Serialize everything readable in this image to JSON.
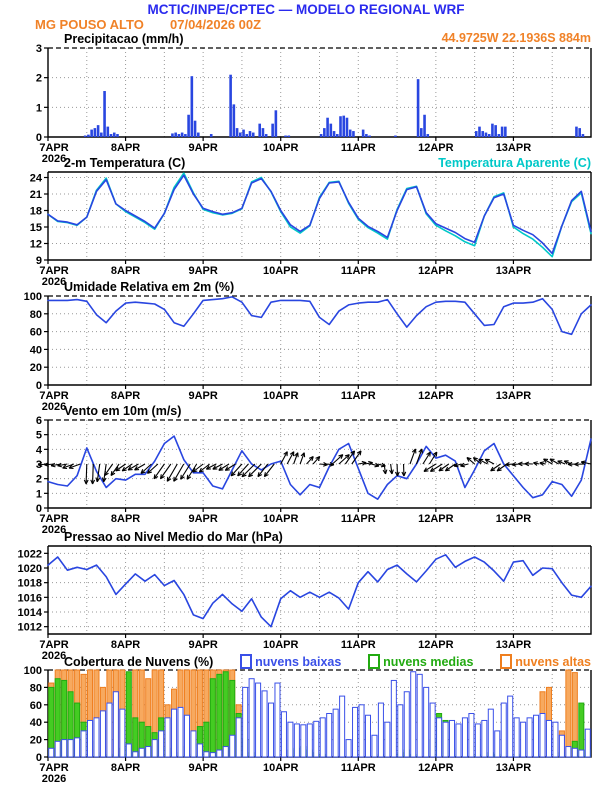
{
  "header": {
    "title": "MCTIC/INPE/CPTEC — MODELO REGIONAL WRF",
    "station": "MG POUSO ALTO",
    "run": "07/04/2026 00Z",
    "location": "44.9725W 22.1936S 884m"
  },
  "colors": {
    "header_blue": "#2a2aee",
    "orange": "#f08228",
    "line_blue": "#2946e0",
    "cyan": "#00c8c8",
    "cloud_low": "#3a50e8",
    "cloud_low_fill": "#ffffff",
    "cloud_mid": "#22aa11",
    "cloud_mid_fill": "#44cc22",
    "cloud_high": "#ef7f1f",
    "cloud_high_fill": "#f7a95f",
    "grid": "#9a9a9a",
    "frame": "#000000"
  },
  "x_axis": {
    "tick_hours": [
      0,
      24,
      48,
      72,
      96,
      120,
      144
    ],
    "tick_labels": [
      "7APR",
      "8APR",
      "9APR",
      "10APR",
      "11APR",
      "12APR",
      "13APR"
    ],
    "year_label": "2026",
    "total_hours": 168,
    "minor_grid_step_hours": 12
  },
  "chart_data": [
    {
      "id": "precipitation",
      "type": "bar",
      "title": "Precipitacao (mm/h)",
      "ylim": [
        0,
        3
      ],
      "yticks": [
        0,
        1,
        2,
        3
      ],
      "bar_color": "#2946e0",
      "bars": [
        [
          11,
          0.05
        ],
        [
          12,
          0.08
        ],
        [
          13,
          0.25
        ],
        [
          14,
          0.3
        ],
        [
          15,
          0.4
        ],
        [
          16,
          0.15
        ],
        [
          17,
          1.55
        ],
        [
          18,
          0.35
        ],
        [
          19,
          0.1
        ],
        [
          20,
          0.15
        ],
        [
          21,
          0.1
        ],
        [
          38,
          0.12
        ],
        [
          39,
          0.15
        ],
        [
          40,
          0.1
        ],
        [
          41,
          0.15
        ],
        [
          42,
          0.1
        ],
        [
          43,
          0.75
        ],
        [
          44,
          2.05
        ],
        [
          45,
          0.55
        ],
        [
          46,
          0.15
        ],
        [
          50,
          0.1
        ],
        [
          56,
          2.1
        ],
        [
          57,
          1.1
        ],
        [
          58,
          0.3
        ],
        [
          59,
          0.15
        ],
        [
          60,
          0.25
        ],
        [
          61,
          0.1
        ],
        [
          62,
          0.2
        ],
        [
          63,
          0.15
        ],
        [
          65,
          0.45
        ],
        [
          66,
          0.3
        ],
        [
          67,
          0.1
        ],
        [
          69,
          0.45
        ],
        [
          70,
          0.9
        ],
        [
          73,
          0.05
        ],
        [
          74,
          0.05
        ],
        [
          84,
          0.1
        ],
        [
          85,
          0.3
        ],
        [
          86,
          0.65
        ],
        [
          87,
          0.45
        ],
        [
          88,
          0.2
        ],
        [
          89,
          0.1
        ],
        [
          90,
          0.7
        ],
        [
          91,
          0.72
        ],
        [
          92,
          0.65
        ],
        [
          93,
          0.25
        ],
        [
          94,
          0.2
        ],
        [
          97,
          0.25
        ],
        [
          98,
          0.1
        ],
        [
          99,
          0.05
        ],
        [
          107,
          0.05
        ],
        [
          114,
          1.95
        ],
        [
          115,
          0.3
        ],
        [
          116,
          0.75
        ],
        [
          117,
          0.1
        ],
        [
          132,
          0.2
        ],
        [
          133,
          0.35
        ],
        [
          134,
          0.2
        ],
        [
          135,
          0.15
        ],
        [
          136,
          0.1
        ],
        [
          137,
          0.45
        ],
        [
          138,
          0.4
        ],
        [
          139,
          0.1
        ],
        [
          140,
          0.35
        ],
        [
          141,
          0.35
        ],
        [
          163,
          0.35
        ],
        [
          164,
          0.3
        ],
        [
          165,
          0.1
        ]
      ]
    },
    {
      "id": "temperature",
      "type": "line",
      "title": "2-m Temperatura (C)",
      "title_right": "Temperatura Aparente (C)",
      "ylim": [
        9,
        25
      ],
      "yticks": [
        9,
        12,
        15,
        18,
        21,
        24
      ],
      "step_hours": 3,
      "series": [
        {
          "name": "2-m Temperatura (C)",
          "color": "#2946e0",
          "values": [
            17.3,
            16.1,
            15.9,
            15.4,
            16.8,
            21.5,
            23.6,
            19.2,
            18.0,
            17.0,
            16.0,
            14.8,
            17.5,
            21.8,
            24.4,
            21.0,
            18.4,
            17.8,
            17.3,
            17.6,
            18.4,
            23.0,
            23.8,
            21.5,
            18.0,
            15.4,
            14.2,
            15.3,
            20.2,
            23.0,
            23.2,
            19.5,
            16.6,
            15.1,
            14.2,
            13.1,
            18.0,
            21.8,
            22.3,
            17.6,
            15.6,
            14.8,
            14.0,
            12.9,
            12.2,
            17.0,
            20.3,
            21.0,
            15.3,
            14.4,
            13.6,
            12.1,
            10.2,
            15.2,
            19.8,
            21.5,
            14.2
          ]
        },
        {
          "name": "Temperatura Aparente (C)",
          "color": "#00c8c8",
          "values": [
            17.3,
            16.0,
            15.8,
            15.3,
            16.8,
            21.7,
            23.9,
            19.2,
            17.8,
            16.8,
            15.8,
            14.6,
            17.5,
            22.2,
            24.8,
            21.2,
            18.2,
            17.6,
            17.2,
            17.5,
            18.3,
            23.2,
            24.0,
            21.4,
            17.8,
            15.0,
            13.9,
            15.2,
            20.4,
            23.1,
            23.3,
            19.3,
            16.4,
            14.9,
            13.9,
            12.8,
            18.2,
            22.0,
            22.4,
            17.4,
            15.3,
            14.3,
            13.4,
            12.3,
            11.6,
            17.0,
            20.5,
            21.2,
            15.0,
            13.8,
            12.8,
            11.3,
            9.6,
            15.2,
            19.6,
            21.2,
            13.8
          ]
        }
      ]
    },
    {
      "id": "humidity",
      "type": "line",
      "title": "Umidade Relativa em 2m (%)",
      "ylim": [
        0,
        100
      ],
      "yticks": [
        0,
        20,
        40,
        60,
        80,
        100
      ],
      "step_hours": 3,
      "series": [
        {
          "name": "Umidade Relativa em 2m (%)",
          "color": "#2946e0",
          "values": [
            95,
            95,
            95,
            96,
            94,
            79,
            70,
            83,
            92,
            93,
            92,
            91,
            85,
            70,
            66,
            80,
            95,
            96,
            97,
            99,
            93,
            78,
            76,
            93,
            95,
            95,
            95,
            94,
            76,
            68,
            83,
            90,
            92,
            93,
            93,
            96,
            80,
            65,
            78,
            88,
            93,
            94,
            94,
            93,
            80,
            67,
            68,
            88,
            92,
            92,
            93,
            97,
            85,
            60,
            57,
            80,
            90
          ]
        }
      ]
    },
    {
      "id": "wind",
      "type": "wind",
      "title": "Vento em 10m (m/s)",
      "ylim": [
        0,
        6
      ],
      "yticks": [
        0,
        1,
        2,
        3,
        4,
        5,
        6
      ],
      "step_hours": 3,
      "arrow_anchor": 3,
      "arrow_color": "#000000",
      "series": [
        {
          "name": "Vento em 10m (m/s)",
          "color": "#2946e0",
          "values": [
            1.8,
            1.6,
            1.5,
            2.2,
            4.1,
            2.5,
            1.4,
            2.0,
            1.9,
            2.3,
            2.3,
            3.2,
            4.4,
            4.9,
            3.3,
            2.4,
            2.4,
            1.5,
            1.3,
            2.6,
            3.9,
            3.0,
            2.6,
            3.0,
            3.2,
            1.6,
            0.9,
            1.6,
            1.4,
            2.8,
            4.0,
            4.4,
            2.7,
            1.0,
            0.6,
            1.6,
            2.2,
            2.0,
            3.0,
            4.2,
            3.4,
            3.6,
            3.2,
            1.4,
            2.6,
            3.9,
            4.4,
            3.0,
            2.2,
            1.4,
            0.7,
            0.9,
            1.8,
            1.6,
            0.8,
            1.9,
            4.7
          ]
        }
      ],
      "arrows": [
        [
          0,
          185,
          10
        ],
        [
          4,
          190,
          10
        ],
        [
          8,
          200,
          12
        ],
        [
          12,
          268,
          20
        ],
        [
          16,
          262,
          18
        ],
        [
          20,
          235,
          14
        ],
        [
          24,
          215,
          12
        ],
        [
          28,
          210,
          12
        ],
        [
          32,
          222,
          14
        ],
        [
          36,
          235,
          18
        ],
        [
          40,
          240,
          20
        ],
        [
          44,
          238,
          18
        ],
        [
          48,
          218,
          13
        ],
        [
          52,
          208,
          11
        ],
        [
          56,
          212,
          12
        ],
        [
          60,
          228,
          16
        ],
        [
          64,
          225,
          18
        ],
        [
          68,
          232,
          16
        ],
        [
          72,
          62,
          14
        ],
        [
          76,
          70,
          12
        ],
        [
          80,
          48,
          10
        ],
        [
          84,
          355,
          8
        ],
        [
          88,
          42,
          14
        ],
        [
          92,
          55,
          16
        ],
        [
          96,
          10,
          8
        ],
        [
          100,
          345,
          8
        ],
        [
          104,
          278,
          10
        ],
        [
          108,
          272,
          12
        ],
        [
          112,
          70,
          16
        ],
        [
          116,
          58,
          14
        ],
        [
          120,
          212,
          14
        ],
        [
          124,
          215,
          12
        ],
        [
          128,
          195,
          8
        ],
        [
          132,
          140,
          10
        ],
        [
          136,
          152,
          10
        ],
        [
          140,
          215,
          12
        ],
        [
          144,
          185,
          8
        ],
        [
          148,
          178,
          8
        ],
        [
          152,
          168,
          6
        ],
        [
          156,
          150,
          10
        ],
        [
          160,
          158,
          8
        ],
        [
          164,
          182,
          10
        ],
        [
          168,
          168,
          10
        ]
      ]
    },
    {
      "id": "pressure",
      "type": "line",
      "title": "Pressao ao Nivel Medio do Mar (hPa)",
      "ylim": [
        1011,
        1023
      ],
      "yticks": [
        1012,
        1014,
        1016,
        1018,
        1020,
        1022
      ],
      "step_hours": 3,
      "series": [
        {
          "name": "Pressao ao Nivel Medio do Mar (hPa)",
          "color": "#2946e0",
          "values": [
            1020.4,
            1021.5,
            1019.7,
            1020.1,
            1019.8,
            1020.4,
            1018.8,
            1016.4,
            1017.8,
            1019.2,
            1018.2,
            1019.1,
            1017.6,
            1018.3,
            1016.4,
            1013.6,
            1013.1,
            1015.2,
            1016.4,
            1015.1,
            1014.1,
            1015.8,
            1013.3,
            1012.0,
            1015.8,
            1016.9,
            1016.0,
            1016.7,
            1016.0,
            1016.7,
            1015.9,
            1014.4,
            1018.0,
            1019.5,
            1018.1,
            1019.8,
            1020.4,
            1019.2,
            1018.1,
            1019.6,
            1021.2,
            1021.8,
            1020.1,
            1020.9,
            1021.5,
            1020.8,
            1019.6,
            1018.2,
            1020.8,
            1021.0,
            1019.0,
            1020.0,
            1019.9,
            1018.0,
            1016.3,
            1016.0,
            1017.5
          ]
        }
      ]
    },
    {
      "id": "clouds",
      "type": "cloudbars",
      "title": "Cobertura de Nuvens (%)",
      "ylim": [
        0,
        100
      ],
      "yticks": [
        0,
        20,
        40,
        60,
        80,
        100
      ],
      "step_hours": 2,
      "series": [
        {
          "name": "nuvens baixas",
          "color": "#3a50e8",
          "fill": "#ffffff",
          "values": [
            10,
            18,
            20,
            20,
            22,
            30,
            42,
            45,
            53,
            62,
            75,
            55,
            15,
            6,
            10,
            12,
            20,
            30,
            45,
            55,
            57,
            48,
            30,
            15,
            6,
            5,
            8,
            12,
            25,
            45,
            80,
            90,
            85,
            76,
            62,
            85,
            52,
            40,
            38,
            37,
            38,
            41,
            45,
            50,
            55,
            70,
            20,
            57,
            60,
            48,
            25,
            62,
            40,
            88,
            60,
            75,
            98,
            95,
            80,
            62,
            45,
            40,
            42,
            38,
            45,
            50,
            38,
            42,
            55,
            30,
            62,
            70,
            45,
            40,
            45,
            48,
            50,
            42,
            40,
            25,
            12,
            10,
            8,
            32
          ]
        },
        {
          "name": "nuvens medias",
          "color": "#22aa11",
          "fill": "#44cc22",
          "values": [
            80,
            90,
            88,
            75,
            62,
            40,
            18,
            8,
            5,
            3,
            3,
            10,
            98,
            45,
            40,
            35,
            28,
            45,
            10,
            5,
            3,
            12,
            3,
            35,
            40,
            90,
            95,
            98,
            88,
            50,
            20,
            5,
            0,
            0,
            0,
            0,
            0,
            8,
            10,
            12,
            8,
            5,
            3,
            0,
            0,
            0,
            0,
            0,
            0,
            0,
            0,
            3,
            0,
            0,
            5,
            8,
            3,
            0,
            0,
            20,
            50,
            42,
            10,
            3,
            0,
            0,
            3,
            0,
            5,
            3,
            0,
            0,
            3,
            0,
            0,
            3,
            0,
            0,
            0,
            5,
            0,
            18,
            62,
            8
          ]
        },
        {
          "name": "nuvens altas",
          "color": "#ef7f1f",
          "fill": "#f7a95f",
          "values": [
            85,
            100,
            100,
            100,
            100,
            95,
            100,
            100,
            80,
            100,
            100,
            100,
            0,
            100,
            100,
            90,
            100,
            100,
            60,
            78,
            100,
            100,
            100,
            100,
            100,
            100,
            100,
            100,
            100,
            60,
            0,
            0,
            0,
            0,
            0,
            0,
            0,
            0,
            0,
            0,
            0,
            0,
            0,
            0,
            0,
            0,
            0,
            0,
            0,
            0,
            0,
            0,
            0,
            0,
            0,
            0,
            0,
            0,
            0,
            0,
            0,
            0,
            0,
            0,
            0,
            0,
            0,
            0,
            0,
            0,
            0,
            0,
            0,
            0,
            0,
            0,
            75,
            80,
            0,
            30,
            100,
            97,
            0,
            0
          ]
        }
      ]
    }
  ]
}
